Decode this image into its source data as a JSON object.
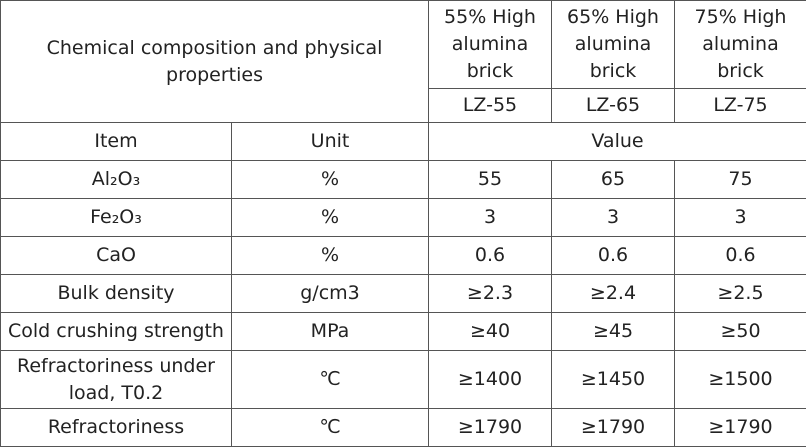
{
  "header": {
    "title": "Chemical composition and physical properties",
    "products": [
      {
        "name": "55% High alumina brick",
        "code": "LZ-55"
      },
      {
        "name": "65% High alumina brick",
        "code": "LZ-65"
      },
      {
        "name": "75% High alumina brick",
        "code": "LZ-75"
      }
    ]
  },
  "table": {
    "columns": [
      "Item",
      "Unit",
      "Value"
    ],
    "rows": [
      [
        "Al₂O₃",
        "%",
        55,
        65,
        75
      ],
      [
        "Fe₂O₃",
        "%",
        3,
        3,
        3
      ],
      [
        "CaO",
        "%",
        0.6,
        0.6,
        0.6
      ],
      [
        "Bulk density",
        "g/cm3",
        "≥2.3",
        "≥2.4",
        "≥2.5"
      ],
      [
        "Cold crushing strength",
        "MPa",
        "≥40",
        "≥45",
        "≥50"
      ],
      [
        "Refractoriness under load, T0.2",
        "℃",
        "≥1400",
        "≥1450",
        "≥1500"
      ],
      [
        "Refractoriness",
        "℃",
        "≥1790",
        "≥1790",
        "≥1790"
      ]
    ]
  }
}
